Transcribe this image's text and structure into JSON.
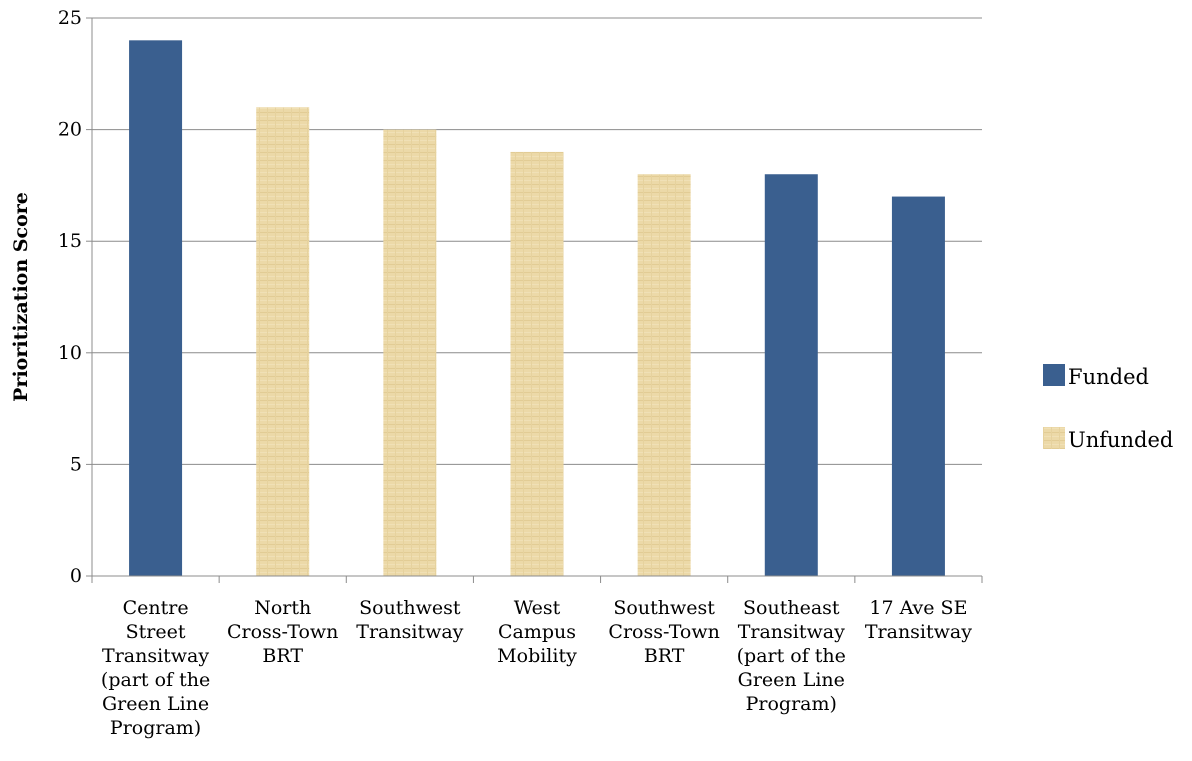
{
  "chart_data": {
    "type": "bar",
    "title": "",
    "xlabel": "",
    "ylabel": "Prioritization Score",
    "ylim": [
      0,
      25
    ],
    "yticks": [
      0,
      5,
      10,
      15,
      20,
      25
    ],
    "grid": true,
    "legend_position": "right",
    "categories": [
      [
        "Centre",
        "Street",
        "Transitway",
        "(part of the",
        "Green Line",
        "Program)"
      ],
      [
        "North",
        "Cross-Town",
        "BRT"
      ],
      [
        "Southwest",
        "Transitway"
      ],
      [
        "West",
        "Campus",
        "Mobility"
      ],
      [
        "Southwest",
        "Cross-Town",
        "BRT"
      ],
      [
        "Southeast",
        "Transitway",
        "(part of the",
        "Green Line",
        "Program)"
      ],
      [
        "17 Ave SE",
        "Transitway"
      ]
    ],
    "values": [
      24,
      21,
      20,
      19,
      18,
      18,
      17
    ],
    "status": [
      "Funded",
      "Unfunded",
      "Unfunded",
      "Unfunded",
      "Unfunded",
      "Funded",
      "Funded"
    ],
    "legend": [
      {
        "name": "Funded",
        "color": "#3a5f8f"
      },
      {
        "name": "Unfunded",
        "color": "#e9d6a3"
      }
    ]
  }
}
